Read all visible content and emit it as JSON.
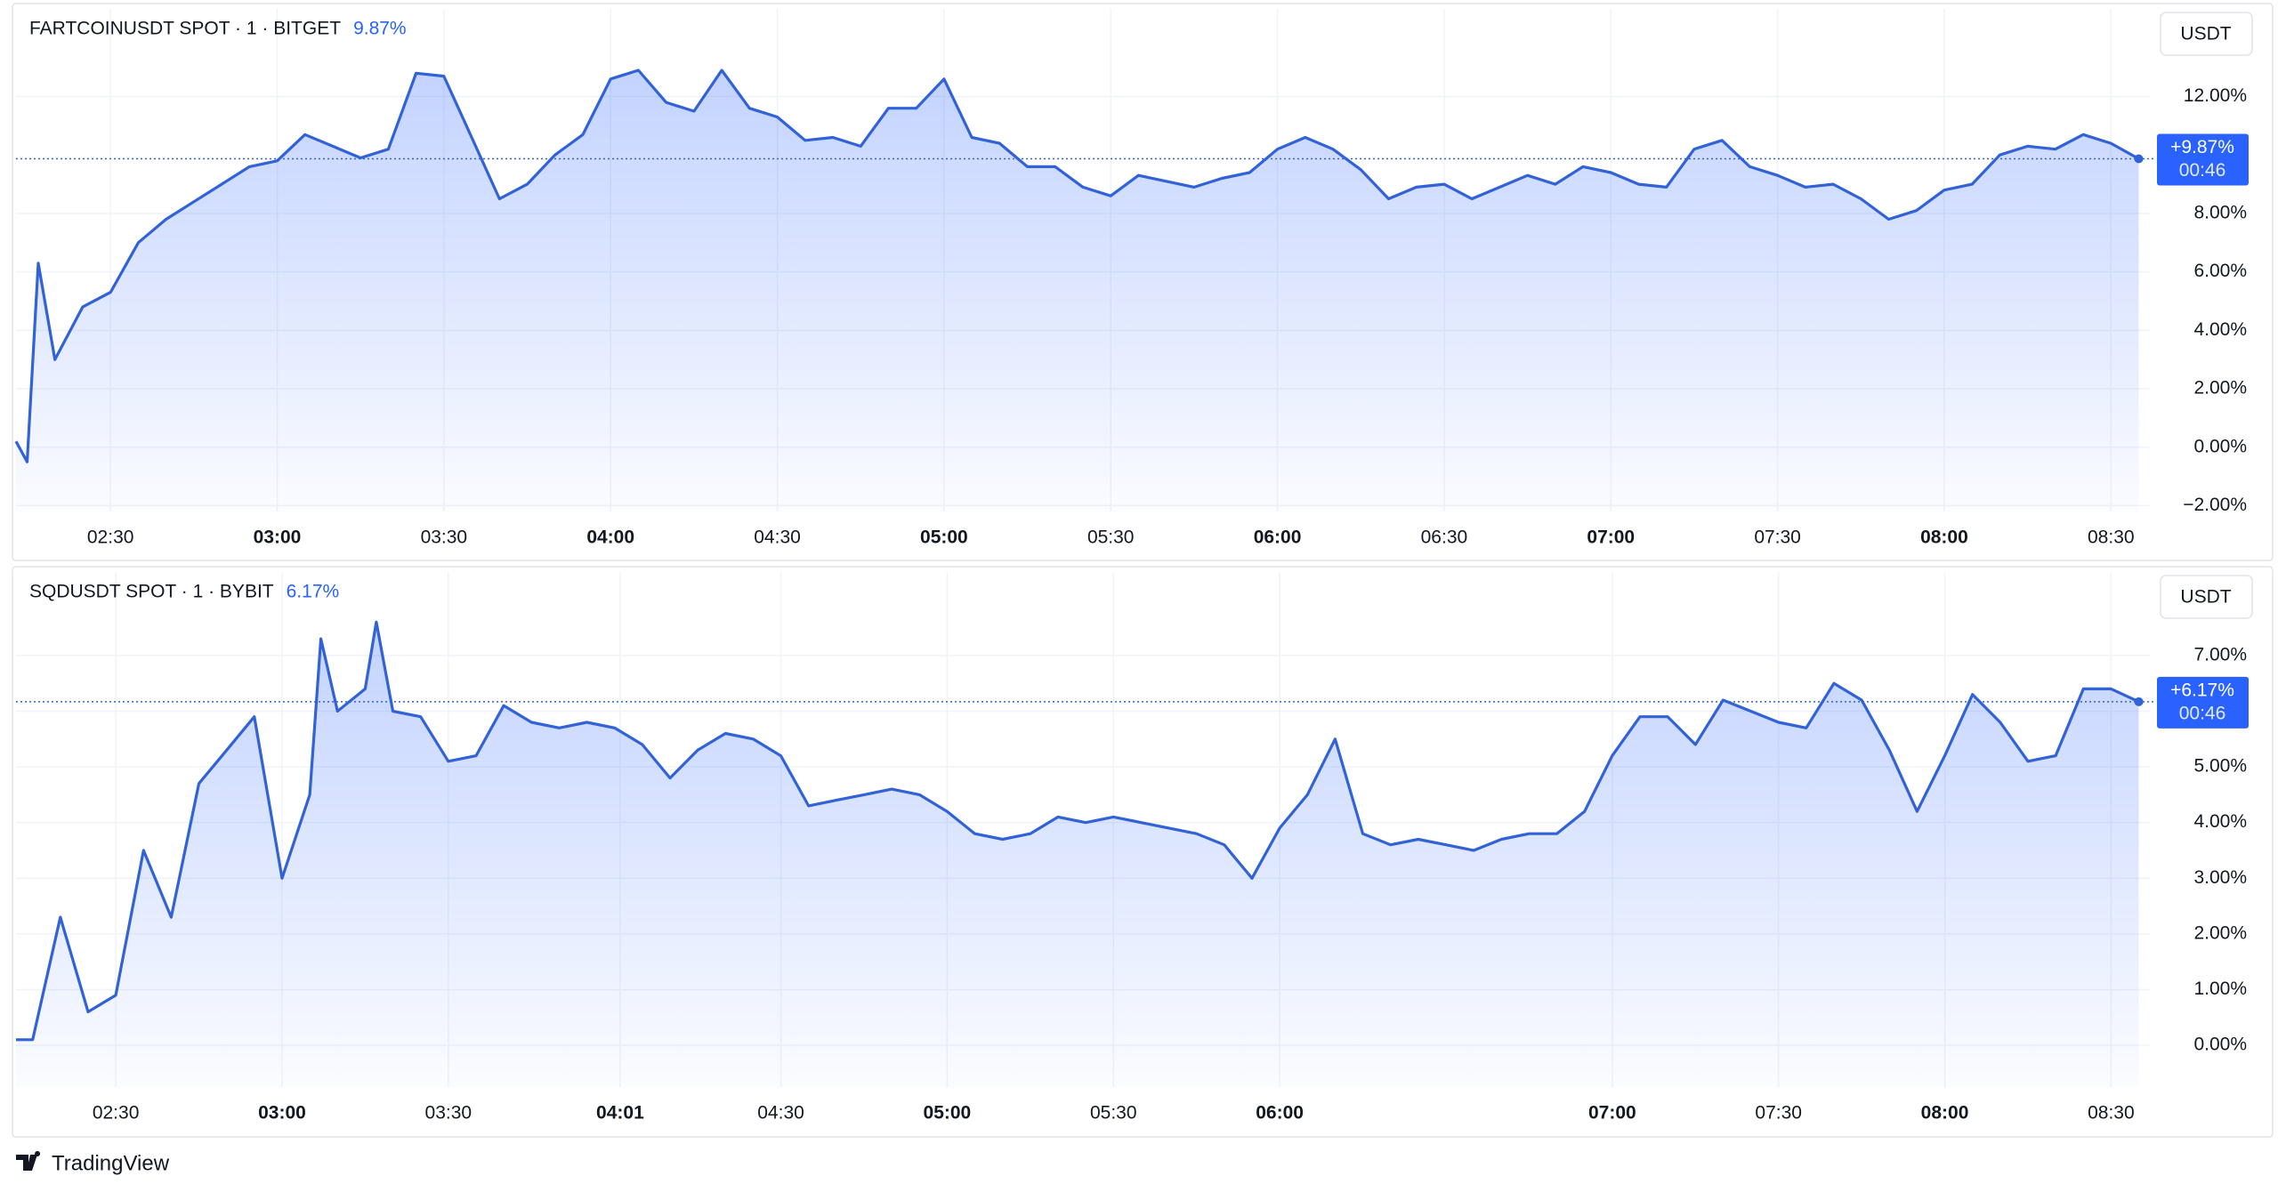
{
  "chart_data": [
    {
      "type": "area",
      "title": "FARTCOINUSDT SPOT · 1 · BITGET",
      "change": "9.87%",
      "currency": "USDT",
      "last_label": "+9.87%",
      "countdown": "00:46",
      "color": "#3162d8",
      "grid": true,
      "x": [
        "02:13",
        "02:15",
        "02:17",
        "02:20",
        "02:25",
        "02:30",
        "02:35",
        "02:40",
        "02:45",
        "02:50",
        "02:55",
        "03:00",
        "03:05",
        "03:10",
        "03:15",
        "03:20",
        "03:25",
        "03:30",
        "03:35",
        "03:40",
        "03:45",
        "03:50",
        "03:55",
        "04:00",
        "04:05",
        "04:10",
        "04:15",
        "04:20",
        "04:25",
        "04:30",
        "04:35",
        "04:40",
        "04:45",
        "04:50",
        "04:55",
        "05:00",
        "05:05",
        "05:10",
        "05:15",
        "05:20",
        "05:25",
        "05:30",
        "05:35",
        "05:40",
        "05:45",
        "05:50",
        "05:55",
        "06:00",
        "06:05",
        "06:10",
        "06:15",
        "06:20",
        "06:25",
        "06:30",
        "06:35",
        "06:40",
        "06:45",
        "06:50",
        "06:55",
        "07:00",
        "07:05",
        "07:10",
        "07:15",
        "07:20",
        "07:25",
        "07:30",
        "07:35",
        "07:40",
        "07:45",
        "07:50",
        "07:55",
        "08:00",
        "08:05",
        "08:10",
        "08:15",
        "08:20",
        "08:25",
        "08:30",
        "08:35"
      ],
      "values": [
        0.2,
        -0.5,
        6.3,
        3.0,
        4.8,
        5.3,
        7.0,
        7.8,
        8.4,
        9.0,
        9.6,
        9.8,
        10.7,
        10.3,
        9.9,
        10.2,
        12.8,
        12.7,
        10.6,
        8.5,
        9.0,
        10.0,
        10.7,
        12.6,
        12.9,
        11.8,
        11.5,
        12.9,
        11.6,
        11.3,
        10.5,
        10.6,
        10.3,
        11.6,
        11.6,
        12.6,
        10.6,
        10.4,
        9.6,
        9.6,
        8.9,
        8.6,
        9.3,
        9.1,
        8.9,
        9.2,
        9.4,
        10.2,
        10.6,
        10.2,
        9.5,
        8.5,
        8.9,
        9.0,
        8.5,
        8.9,
        9.3,
        9.0,
        9.6,
        9.4,
        9.0,
        8.9,
        10.2,
        10.5,
        9.6,
        9.3,
        8.9,
        9.0,
        8.5,
        7.8,
        8.1,
        8.8,
        9.0,
        10.0,
        10.3,
        10.2,
        10.7,
        10.4,
        9.87
      ],
      "xlim": [
        "02:13",
        "08:37"
      ],
      "xticks": [
        "02:30",
        "03:00",
        "03:30",
        "04:00",
        "04:30",
        "05:00",
        "05:30",
        "06:00",
        "06:30",
        "07:00",
        "07:30",
        "08:00",
        "08:30"
      ],
      "xtick_bold": [
        false,
        true,
        false,
        true,
        false,
        true,
        false,
        true,
        false,
        true,
        false,
        true,
        false
      ],
      "ylim": [
        -2.2,
        15
      ],
      "yticks": [
        {
          "value": -2,
          "label": "−2.00%"
        },
        {
          "value": 0,
          "label": "0.00%"
        },
        {
          "value": 2,
          "label": "2.00%"
        },
        {
          "value": 4,
          "label": "4.00%"
        },
        {
          "value": 6,
          "label": "6.00%"
        },
        {
          "value": 8,
          "label": "8.00%"
        },
        {
          "value": 12,
          "label": "12.00%"
        }
      ]
    },
    {
      "type": "area",
      "title": "SQDUSDT SPOT · 1 · BYBIT",
      "change": "6.17%",
      "currency": "USDT",
      "last_label": "+6.17%",
      "countdown": "00:46",
      "color": "#3162d8",
      "grid": true,
      "x": [
        "02:12",
        "02:15",
        "02:20",
        "02:25",
        "02:30",
        "02:35",
        "02:40",
        "02:45",
        "02:50",
        "02:55",
        "03:00",
        "03:05",
        "03:07",
        "03:10",
        "03:15",
        "03:17",
        "03:20",
        "03:25",
        "03:30",
        "03:35",
        "03:40",
        "03:45",
        "03:50",
        "03:55",
        "04:00",
        "04:05",
        "04:10",
        "04:15",
        "04:20",
        "04:25",
        "04:30",
        "04:35",
        "04:40",
        "04:45",
        "04:50",
        "04:55",
        "05:00",
        "05:05",
        "05:10",
        "05:15",
        "05:20",
        "05:25",
        "05:30",
        "05:35",
        "05:40",
        "05:45",
        "05:50",
        "05:55",
        "06:00",
        "06:05",
        "06:10",
        "06:15",
        "06:20",
        "06:25",
        "06:30",
        "06:35",
        "06:40",
        "06:45",
        "06:50",
        "06:55",
        "07:00",
        "07:05",
        "07:10",
        "07:15",
        "07:20",
        "07:25",
        "07:30",
        "07:35",
        "07:40",
        "07:45",
        "07:50",
        "07:55",
        "08:00",
        "08:05",
        "08:10",
        "08:15",
        "08:20",
        "08:25",
        "08:30",
        "08:35"
      ],
      "values": [
        0.1,
        0.1,
        2.3,
        0.6,
        0.9,
        3.5,
        2.3,
        4.7,
        5.3,
        5.9,
        3.0,
        4.5,
        7.3,
        6.0,
        6.4,
        7.6,
        6.0,
        5.9,
        5.1,
        5.2,
        6.1,
        5.8,
        5.7,
        5.8,
        5.7,
        5.4,
        4.8,
        5.3,
        5.6,
        5.5,
        5.2,
        4.3,
        4.4,
        4.5,
        4.6,
        4.5,
        4.2,
        3.8,
        3.7,
        3.8,
        4.1,
        4.0,
        4.1,
        4.0,
        3.9,
        3.8,
        3.6,
        3.0,
        3.9,
        4.5,
        5.5,
        3.8,
        3.6,
        3.7,
        3.6,
        3.5,
        3.7,
        3.8,
        3.8,
        4.2,
        5.2,
        5.9,
        5.9,
        5.4,
        6.2,
        6.0,
        5.8,
        5.7,
        6.5,
        6.2,
        5.3,
        4.2,
        5.2,
        6.3,
        5.8,
        5.1,
        5.2,
        6.4,
        6.4,
        6.17
      ],
      "xlim": [
        "02:12",
        "08:37"
      ],
      "xticks": [
        "02:30",
        "03:00",
        "03:30",
        "04:01",
        "04:30",
        "05:00",
        "05:30",
        "06:00",
        "07:00",
        "07:30",
        "08:00",
        "08:30"
      ],
      "xtick_bold": [
        false,
        true,
        false,
        true,
        false,
        true,
        false,
        true,
        true,
        false,
        true,
        false
      ],
      "ylim": [
        -0.75,
        8.5
      ],
      "yticks": [
        {
          "value": 0,
          "label": "0.00%"
        },
        {
          "value": 1,
          "label": "1.00%"
        },
        {
          "value": 2,
          "label": "2.00%"
        },
        {
          "value": 3,
          "label": "3.00%"
        },
        {
          "value": 4,
          "label": "4.00%"
        },
        {
          "value": 5,
          "label": "5.00%"
        },
        {
          "value": 6,
          "label": "6.00%"
        },
        {
          "value": 7,
          "label": "7.00%"
        }
      ]
    }
  ],
  "footer": "TradingView"
}
